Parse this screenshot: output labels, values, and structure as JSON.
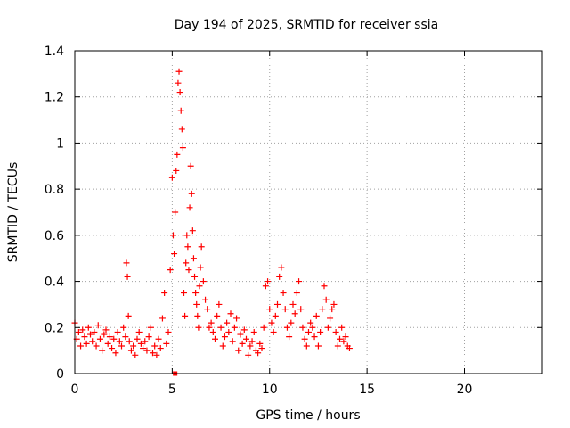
{
  "chart_data": {
    "type": "scatter",
    "title": "Day 194 of 2025, SRMTID for receiver ssia",
    "xlabel": "GPS time / hours",
    "ylabel": "SRMTID / TECUs",
    "xlim": [
      0,
      24
    ],
    "ylim": [
      0,
      1.4
    ],
    "xticks": [
      0,
      5,
      10,
      15,
      20
    ],
    "xtick_labels": [
      "0",
      "5",
      "10",
      "15",
      "20"
    ],
    "yticks": [
      0,
      0.2,
      0.4,
      0.6,
      0.8,
      1,
      1.2,
      1.4
    ],
    "ytick_labels": [
      "0",
      "0.2",
      "0.4",
      "0.6",
      "0.8",
      "1",
      "1.2",
      "1.4"
    ],
    "grid": true,
    "marker": "+",
    "marker_color": "#ff0000",
    "outlier_marker": {
      "x": 5.15,
      "y": 0.0
    },
    "series": [
      {
        "name": "SRMTID",
        "x": [
          0.0,
          0.1,
          0.2,
          0.3,
          0.4,
          0.5,
          0.6,
          0.7,
          0.8,
          0.9,
          1.0,
          1.1,
          1.2,
          1.3,
          1.4,
          1.5,
          1.6,
          1.7,
          1.8,
          1.9,
          2.0,
          2.1,
          2.2,
          2.3,
          2.4,
          2.5,
          2.6,
          2.65,
          2.7,
          2.75,
          2.8,
          2.9,
          3.0,
          3.1,
          3.2,
          3.3,
          3.4,
          3.5,
          3.6,
          3.7,
          3.8,
          3.9,
          4.0,
          4.1,
          4.2,
          4.3,
          4.4,
          4.5,
          4.6,
          4.7,
          4.8,
          4.9,
          5.0,
          5.05,
          5.1,
          5.15,
          5.2,
          5.25,
          5.3,
          5.35,
          5.4,
          5.45,
          5.5,
          5.55,
          5.6,
          5.65,
          5.7,
          5.75,
          5.8,
          5.85,
          5.9,
          5.95,
          6.0,
          6.05,
          6.1,
          6.15,
          6.2,
          6.25,
          6.3,
          6.35,
          6.4,
          6.45,
          6.5,
          6.6,
          6.7,
          6.8,
          6.9,
          7.0,
          7.1,
          7.2,
          7.3,
          7.4,
          7.5,
          7.6,
          7.7,
          7.8,
          7.9,
          8.0,
          8.1,
          8.2,
          8.3,
          8.4,
          8.5,
          8.6,
          8.7,
          8.8,
          8.9,
          9.0,
          9.1,
          9.2,
          9.3,
          9.4,
          9.5,
          9.6,
          9.7,
          9.8,
          9.9,
          10.0,
          10.1,
          10.2,
          10.3,
          10.4,
          10.5,
          10.6,
          10.7,
          10.8,
          10.9,
          11.0,
          11.1,
          11.2,
          11.3,
          11.4,
          11.5,
          11.6,
          11.7,
          11.8,
          11.9,
          12.0,
          12.1,
          12.2,
          12.3,
          12.4,
          12.5,
          12.6,
          12.7,
          12.8,
          12.9,
          13.0,
          13.1,
          13.2,
          13.3,
          13.4,
          13.5,
          13.6,
          13.7,
          13.8,
          13.9,
          14.0,
          14.1
        ],
        "y": [
          0.22,
          0.15,
          0.18,
          0.12,
          0.19,
          0.16,
          0.13,
          0.2,
          0.17,
          0.14,
          0.18,
          0.12,
          0.21,
          0.15,
          0.1,
          0.17,
          0.19,
          0.13,
          0.16,
          0.11,
          0.15,
          0.09,
          0.18,
          0.14,
          0.12,
          0.2,
          0.16,
          0.48,
          0.42,
          0.25,
          0.14,
          0.1,
          0.12,
          0.08,
          0.15,
          0.18,
          0.13,
          0.11,
          0.14,
          0.1,
          0.16,
          0.2,
          0.09,
          0.12,
          0.08,
          0.15,
          0.11,
          0.24,
          0.35,
          0.13,
          0.18,
          0.45,
          0.85,
          0.6,
          0.52,
          0.7,
          0.88,
          0.95,
          1.26,
          1.31,
          1.22,
          1.14,
          1.06,
          0.98,
          0.35,
          0.25,
          0.48,
          0.6,
          0.55,
          0.45,
          0.72,
          0.9,
          0.78,
          0.62,
          0.5,
          0.42,
          0.35,
          0.3,
          0.25,
          0.2,
          0.38,
          0.46,
          0.55,
          0.4,
          0.32,
          0.28,
          0.2,
          0.22,
          0.18,
          0.15,
          0.25,
          0.3,
          0.2,
          0.12,
          0.16,
          0.22,
          0.18,
          0.26,
          0.14,
          0.2,
          0.24,
          0.1,
          0.17,
          0.13,
          0.19,
          0.15,
          0.08,
          0.12,
          0.14,
          0.18,
          0.1,
          0.09,
          0.13,
          0.11,
          0.2,
          0.38,
          0.4,
          0.28,
          0.22,
          0.18,
          0.25,
          0.3,
          0.42,
          0.46,
          0.35,
          0.28,
          0.2,
          0.16,
          0.22,
          0.3,
          0.26,
          0.35,
          0.4,
          0.28,
          0.2,
          0.15,
          0.12,
          0.18,
          0.22,
          0.2,
          0.16,
          0.25,
          0.12,
          0.18,
          0.28,
          0.38,
          0.32,
          0.2,
          0.24,
          0.28,
          0.3,
          0.18,
          0.12,
          0.15,
          0.2,
          0.14,
          0.16,
          0.12,
          0.11
        ]
      }
    ]
  }
}
